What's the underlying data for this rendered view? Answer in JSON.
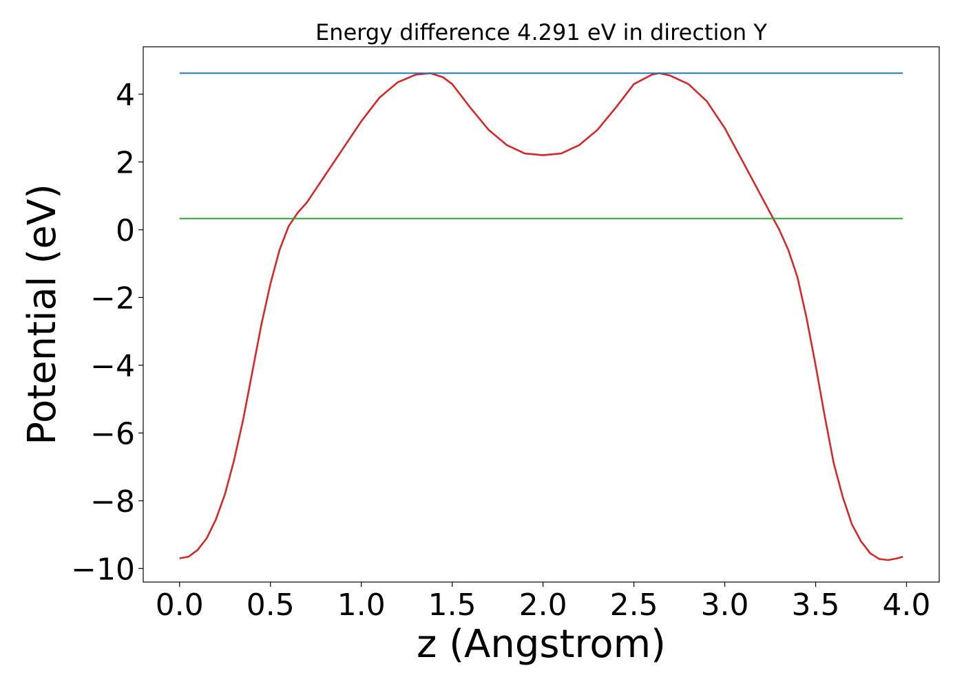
{
  "chart_data": {
    "type": "line",
    "title": "Energy difference 4.291 eV in direction Y",
    "xlabel": "z (Angstrom)",
    "ylabel": "Potential (eV)",
    "xlim": [
      -0.2,
      4.18
    ],
    "ylim": [
      -10.4,
      5.4
    ],
    "grid": false,
    "legend": "none",
    "x_ticks": [
      0.0,
      0.5,
      1.0,
      1.5,
      2.0,
      2.5,
      3.0,
      3.5,
      4.0
    ],
    "x_tick_labels": [
      "0.0",
      "0.5",
      "1.0",
      "1.5",
      "2.0",
      "2.5",
      "3.0",
      "3.5",
      "4.0"
    ],
    "y_ticks": [
      4,
      2,
      0,
      -2,
      -4,
      -6,
      -8,
      -10
    ],
    "y_tick_labels": [
      "4",
      "2",
      "0",
      "−2",
      "−4",
      "−6",
      "−8",
      "−10"
    ],
    "series": [
      {
        "color": "#d62728",
        "x": [
          0.0,
          0.05,
          0.1,
          0.15,
          0.2,
          0.25,
          0.3,
          0.35,
          0.4,
          0.45,
          0.5,
          0.55,
          0.6,
          0.65,
          0.7,
          0.75,
          0.8,
          0.9,
          1.0,
          1.1,
          1.2,
          1.3,
          1.38,
          1.45,
          1.5,
          1.6,
          1.7,
          1.8,
          1.9,
          2.0,
          2.1,
          2.2,
          2.3,
          2.4,
          2.5,
          2.6,
          2.64,
          2.7,
          2.8,
          2.9,
          3.0,
          3.1,
          3.2,
          3.25,
          3.3,
          3.35,
          3.4,
          3.45,
          3.5,
          3.55,
          3.6,
          3.65,
          3.7,
          3.75,
          3.8,
          3.85,
          3.9,
          3.95,
          3.98
        ],
        "y": [
          -9.7,
          -9.65,
          -9.45,
          -9.1,
          -8.55,
          -7.8,
          -6.8,
          -5.6,
          -4.2,
          -2.8,
          -1.6,
          -0.6,
          0.1,
          0.5,
          0.8,
          1.2,
          1.6,
          2.4,
          3.2,
          3.9,
          4.35,
          4.58,
          4.62,
          4.5,
          4.3,
          3.6,
          2.95,
          2.5,
          2.25,
          2.2,
          2.25,
          2.5,
          2.95,
          3.6,
          4.3,
          4.58,
          4.62,
          4.55,
          4.3,
          3.8,
          3.0,
          2.0,
          1.0,
          0.5,
          0.0,
          -0.6,
          -1.4,
          -2.6,
          -4.0,
          -5.5,
          -6.9,
          -7.9,
          -8.7,
          -9.2,
          -9.55,
          -9.72,
          -9.75,
          -9.7,
          -9.65
        ]
      },
      {
        "color": "#1f77b4",
        "x": [
          0.0,
          3.98
        ],
        "y": [
          4.62,
          4.62
        ]
      },
      {
        "color": "#2ca02c",
        "x": [
          0.0,
          3.98
        ],
        "y": [
          0.33,
          0.33
        ]
      }
    ]
  }
}
